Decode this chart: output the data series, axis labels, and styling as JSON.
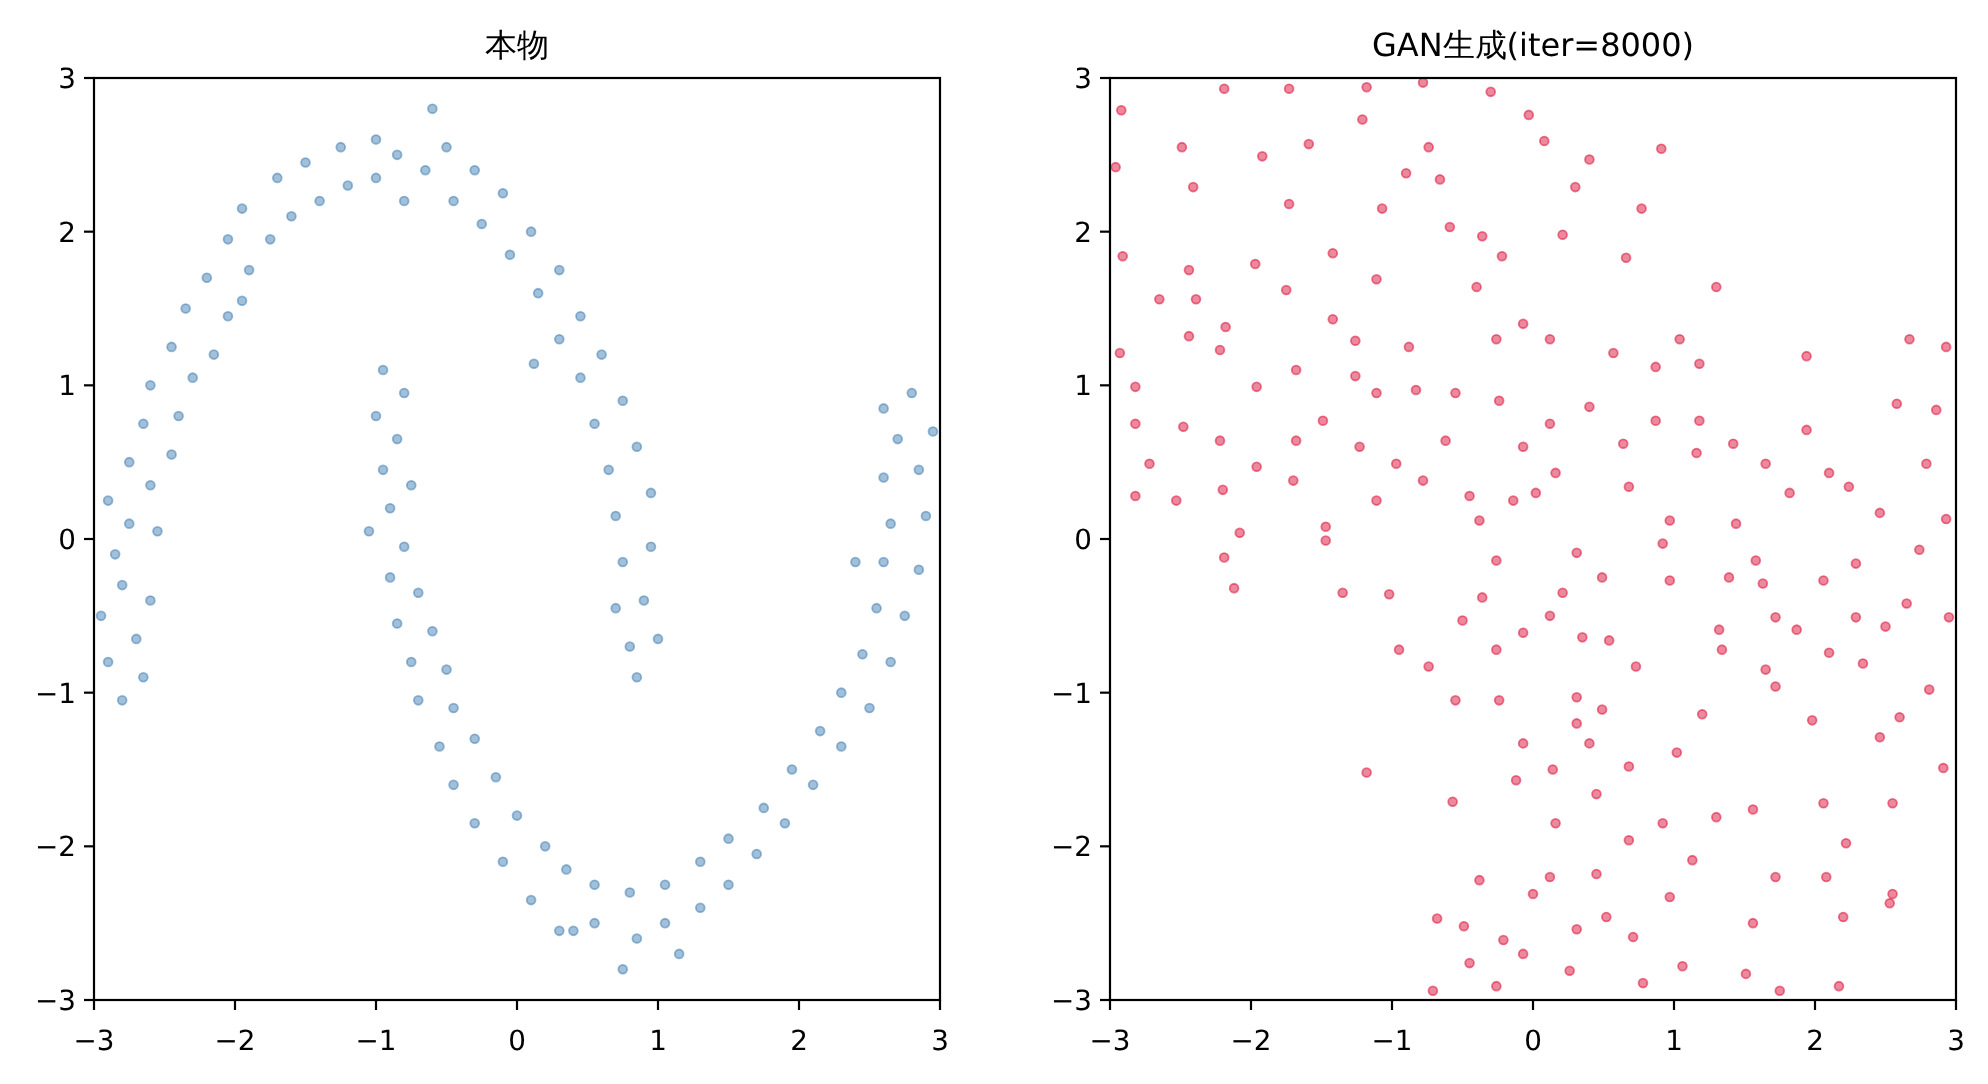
{
  "chart_data": [
    {
      "type": "scatter",
      "title": "本物",
      "marker": "circle",
      "xlim": [
        -3,
        3
      ],
      "ylim": [
        -3,
        3
      ],
      "xticks": [
        {
          "value": -3,
          "label": "−3"
        },
        {
          "value": -2,
          "label": "−2"
        },
        {
          "value": -1,
          "label": "−1"
        },
        0,
        1,
        2,
        3
      ],
      "yticks": [
        {
          "value": -3,
          "label": "−3"
        },
        {
          "value": -2,
          "label": "−2"
        },
        {
          "value": -1,
          "label": "−1"
        },
        0,
        1,
        2,
        3
      ],
      "series": [
        {
          "color": "#4682b4",
          "x": [
            -2.8,
            -2.65,
            -2.9,
            -2.7,
            -2.95,
            -2.6,
            -2.8,
            -2.85,
            -2.55,
            -2.75,
            -2.9,
            -2.6,
            -2.75,
            -2.45,
            -2.65,
            -2.4,
            -2.6,
            -2.3,
            -2.45,
            -2.15,
            -2.35,
            -2.05,
            -2.2,
            -1.9,
            -2.05,
            -1.75,
            -1.95,
            -1.6,
            -1.7,
            -1.4,
            -1.5,
            -1.2,
            -1.25,
            -1.0,
            -1.0,
            -0.8,
            -0.85,
            -0.6,
            -0.65,
            -0.5,
            -0.45,
            -0.3,
            -0.25,
            -0.1,
            -0.05,
            0.1,
            0.15,
            0.3,
            0.3,
            0.45,
            0.45,
            0.6,
            0.55,
            0.75,
            0.65,
            0.85,
            0.7,
            0.95,
            0.75,
            0.95,
            0.7,
            0.9,
            0.8,
            1.0,
            0.85,
            -1.95,
            0.12,
            -0.95,
            -0.8,
            -1.0,
            -0.85,
            -0.95,
            -0.75,
            -0.9,
            -1.05,
            -0.8,
            -0.9,
            -0.7,
            -0.85,
            -0.6,
            -0.75,
            -0.5,
            -0.7,
            -0.45,
            -0.55,
            -0.3,
            -0.45,
            -0.15,
            -0.3,
            0.0,
            -0.1,
            0.2,
            0.1,
            0.35,
            0.3,
            0.55,
            0.55,
            0.75,
            0.8,
            0.85,
            1.05,
            1.05,
            1.3,
            1.3,
            1.5,
            1.5,
            1.7,
            1.75,
            1.9,
            1.95,
            2.1,
            2.15,
            2.3,
            2.3,
            2.5,
            2.45,
            2.65,
            2.55,
            2.75,
            2.6,
            2.85,
            2.65,
            2.9,
            2.6,
            2.85,
            2.7,
            2.95,
            2.6,
            2.8,
            2.4,
            0.4,
            1.15
          ],
          "values": [
            -1.05,
            -0.9,
            -0.8,
            -0.65,
            -0.5,
            -0.4,
            -0.3,
            -0.1,
            0.05,
            0.1,
            0.25,
            0.35,
            0.5,
            0.55,
            0.75,
            0.8,
            1.0,
            1.05,
            1.25,
            1.2,
            1.5,
            1.45,
            1.7,
            1.75,
            1.95,
            1.95,
            2.15,
            2.1,
            2.35,
            2.2,
            2.45,
            2.3,
            2.55,
            2.35,
            2.6,
            2.2,
            2.5,
            2.8,
            2.4,
            2.55,
            2.2,
            2.4,
            2.05,
            2.25,
            1.85,
            2.0,
            1.6,
            1.75,
            1.3,
            1.45,
            1.05,
            1.2,
            0.75,
            0.9,
            0.45,
            0.6,
            0.15,
            0.3,
            -0.15,
            -0.05,
            -0.45,
            -0.4,
            -0.7,
            -0.65,
            -0.9,
            1.55,
            1.14,
            1.1,
            0.95,
            0.8,
            0.65,
            0.45,
            0.35,
            0.2,
            0.05,
            -0.05,
            -0.25,
            -0.35,
            -0.55,
            -0.6,
            -0.8,
            -0.85,
            -1.05,
            -1.1,
            -1.35,
            -1.3,
            -1.6,
            -1.55,
            -1.85,
            -1.8,
            -2.1,
            -2.0,
            -2.35,
            -2.15,
            -2.55,
            -2.25,
            -2.5,
            -2.8,
            -2.3,
            -2.6,
            -2.25,
            -2.5,
            -2.4,
            -2.1,
            -2.25,
            -1.95,
            -2.05,
            -1.75,
            -1.85,
            -1.5,
            -1.6,
            -1.25,
            -1.35,
            -1.0,
            -1.1,
            -0.75,
            -0.8,
            -0.45,
            -0.5,
            -0.15,
            -0.2,
            0.1,
            0.15,
            0.4,
            0.45,
            0.65,
            0.7,
            0.85,
            0.95,
            -0.15,
            -2.55,
            -2.7
          ]
        }
      ]
    },
    {
      "type": "scatter",
      "title": "GAN生成(iter=8000)",
      "marker": "circle",
      "xlim": [
        -3,
        3
      ],
      "ylim": [
        -3,
        3
      ],
      "xticks": [
        {
          "value": -3,
          "label": "−3"
        },
        {
          "value": -2,
          "label": "−2"
        },
        {
          "value": -1,
          "label": "−1"
        },
        0,
        1,
        2,
        3
      ],
      "yticks": [
        {
          "value": -3,
          "label": "−3"
        },
        {
          "value": -2,
          "label": "−2"
        },
        {
          "value": -1,
          "label": "−1"
        },
        0,
        1,
        2,
        3
      ],
      "series": [
        {
          "color": "#dc143c",
          "x": [
            -2.92,
            -2.19,
            -1.73,
            -1.18,
            -0.78,
            -0.3,
            -0.03,
            0.08,
            0.4,
            0.91,
            0.3,
            0.77,
            0.66,
            1.3,
            -0.74,
            -0.66,
            -0.9,
            -1.21,
            -1.59,
            -1.92,
            -2.49,
            -2.96,
            -2.41,
            -1.73,
            -1.07,
            -0.59,
            -0.36,
            -0.22,
            0.21,
            -2.91,
            -2.44,
            -1.97,
            -1.42,
            -2.65,
            -2.39,
            -2.44,
            -2.18,
            -1.75,
            -1.42,
            -1.11,
            -1.26,
            -0.88,
            -0.4,
            -0.26,
            -0.07,
            0.12,
            0.57,
            -2.93,
            -2.82,
            -2.22,
            -1.96,
            -1.68,
            -1.26,
            -2.82,
            -2.48,
            -2.22,
            -2.72,
            -2.82,
            -2.53,
            -2.2,
            -2.08,
            -1.96,
            -1.68,
            -1.7,
            -1.47,
            -1.49,
            -1.11,
            -1.23,
            -1.11,
            -0.97,
            -0.78,
            -0.83,
            -0.55,
            -0.24,
            -0.62,
            -0.45,
            -0.38,
            -0.14,
            0.02,
            0.16,
            -0.07,
            0.12,
            0.4,
            0.64,
            0.68,
            0.87,
            0.87,
            1.18,
            1.18,
            1.16,
            1.42,
            1.04,
            1.65,
            1.94,
            1.94,
            2.1,
            1.82,
            1.44,
            0.97,
            2.24,
            2.46,
            2.58,
            2.67,
            2.93,
            2.86,
            2.79,
            2.93,
            -2.19,
            -2.12,
            -1.47,
            -1.35,
            -1.18,
            -1.02,
            -0.95,
            -0.74,
            -0.55,
            -0.57,
            -0.68,
            -0.49,
            -0.71,
            -0.45,
            -0.38,
            -0.26,
            -0.21,
            -0.07,
            0.0,
            0.12,
            0.16,
            0.26,
            0.31,
            0.45,
            0.52,
            0.68,
            0.71,
            0.78,
            0.92,
            0.97,
            1.06,
            1.13,
            1.3,
            1.51,
            1.56,
            1.72,
            1.75,
            2.08,
            2.2,
            2.22,
            2.17,
            2.55,
            2.06,
            1.56,
            2.55,
            2.91,
            2.6,
            1.98,
            1.72,
            1.34,
            1.2,
            1.02,
            0.68,
            0.4,
            0.45,
            0.14,
            -0.07,
            -0.12,
            0.31,
            0.49,
            -0.24,
            0.31,
            -0.26,
            -0.07,
            0.12,
            0.35,
            0.54,
            0.73,
            0.97,
            0.49,
            0.21,
            -0.36,
            -0.5,
            -0.26,
            0.31,
            0.92,
            1.32,
            1.39,
            1.63,
            1.72,
            1.65,
            1.87,
            2.06,
            2.1,
            2.29,
            2.34,
            2.5,
            2.65,
            2.81,
            2.95,
            2.74,
            2.29,
            1.58,
            2.46,
            2.53
          ],
          "values": [
            2.79,
            2.93,
            2.93,
            2.94,
            2.97,
            2.91,
            2.76,
            2.59,
            2.47,
            2.54,
            2.29,
            2.15,
            1.83,
            1.64,
            2.55,
            2.34,
            2.38,
            2.73,
            2.57,
            2.49,
            2.55,
            2.42,
            2.29,
            2.18,
            2.15,
            2.03,
            1.97,
            1.84,
            1.98,
            1.84,
            1.75,
            1.79,
            1.86,
            1.56,
            1.56,
            1.32,
            1.38,
            1.62,
            1.43,
            1.69,
            1.29,
            1.25,
            1.64,
            1.3,
            1.4,
            1.3,
            1.21,
            1.21,
            0.99,
            1.23,
            0.99,
            1.1,
            1.06,
            0.75,
            0.73,
            0.64,
            0.49,
            0.28,
            0.25,
            0.32,
            0.04,
            0.47,
            0.64,
            0.38,
            0.08,
            0.77,
            0.95,
            0.6,
            0.25,
            0.49,
            0.38,
            0.97,
            0.95,
            0.9,
            0.64,
            0.28,
            0.12,
            0.25,
            0.3,
            0.43,
            0.6,
            0.75,
            0.86,
            0.62,
            0.34,
            0.77,
            1.12,
            1.14,
            0.77,
            0.56,
            0.62,
            1.3,
            0.49,
            1.19,
            0.71,
            0.43,
            0.3,
            0.1,
            0.12,
            0.34,
            0.17,
            0.88,
            1.3,
            1.25,
            0.84,
            0.49,
            0.13,
            -0.12,
            -0.32,
            -0.01,
            -0.35,
            -1.52,
            -0.36,
            -0.72,
            -0.83,
            -1.05,
            -1.71,
            -2.47,
            -2.52,
            -2.94,
            -2.76,
            -2.22,
            -2.91,
            -2.61,
            -2.7,
            -2.31,
            -2.2,
            -1.85,
            -2.81,
            -2.54,
            -2.18,
            -2.46,
            -1.96,
            -2.59,
            -2.89,
            -1.85,
            -2.33,
            -2.78,
            -2.09,
            -1.81,
            -2.83,
            -2.5,
            -2.2,
            -2.94,
            -2.2,
            -2.46,
            -1.98,
            -2.91,
            -2.31,
            -1.72,
            -1.76,
            -1.72,
            -1.49,
            -1.16,
            -1.18,
            -0.96,
            -0.72,
            -1.14,
            -1.39,
            -1.48,
            -1.33,
            -1.66,
            -1.5,
            -1.33,
            -1.57,
            -1.2,
            -1.11,
            -1.05,
            -1.03,
            -0.72,
            -0.61,
            -0.5,
            -0.64,
            -0.66,
            -0.83,
            -0.27,
            -0.25,
            -0.35,
            -0.38,
            -0.53,
            -0.14,
            -0.09,
            -0.03,
            -0.59,
            -0.25,
            -0.29,
            -0.51,
            -0.85,
            -0.59,
            -0.27,
            -0.74,
            -0.51,
            -0.81,
            -0.57,
            -0.42,
            -0.98,
            -0.51,
            -0.07,
            -0.16,
            -0.14,
            -1.29,
            -2.37
          ]
        }
      ]
    }
  ]
}
